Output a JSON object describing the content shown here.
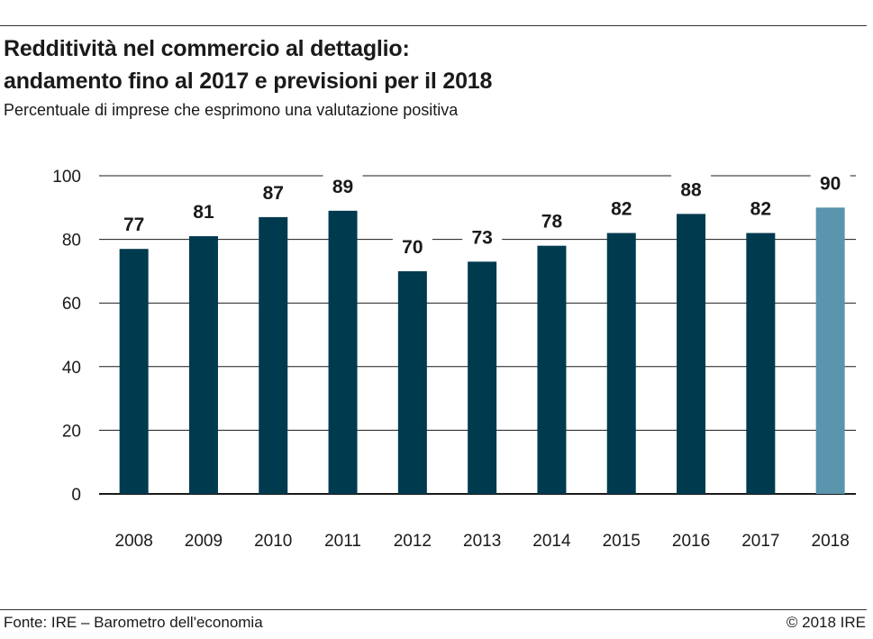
{
  "header": {
    "title_line1": "Redditività nel commercio al dettaglio:",
    "title_line2": "andamento fino al 2017 e previsioni per il 2018",
    "subtitle": "Percentuale di imprese che esprimono una valutazione positiva"
  },
  "footer": {
    "source": "Fonte: IRE – Barometro dell'economia",
    "copyright": "© 2018 IRE"
  },
  "colors": {
    "bar_actual": "#003a4f",
    "bar_forecast": "#5a94ad",
    "grid": "#1a1a1a"
  },
  "chart_data": {
    "type": "bar",
    "categories": [
      "2008",
      "2009",
      "2010",
      "2011",
      "2012",
      "2013",
      "2014",
      "2015",
      "2016",
      "2017",
      "2018"
    ],
    "values": [
      77,
      81,
      87,
      89,
      70,
      73,
      78,
      82,
      88,
      82,
      90
    ],
    "forecast_categories": [
      "2018"
    ],
    "ylim": [
      0,
      100
    ],
    "yticks": [
      0,
      20,
      40,
      60,
      80,
      100
    ],
    "grid": true,
    "data_labels": true
  }
}
